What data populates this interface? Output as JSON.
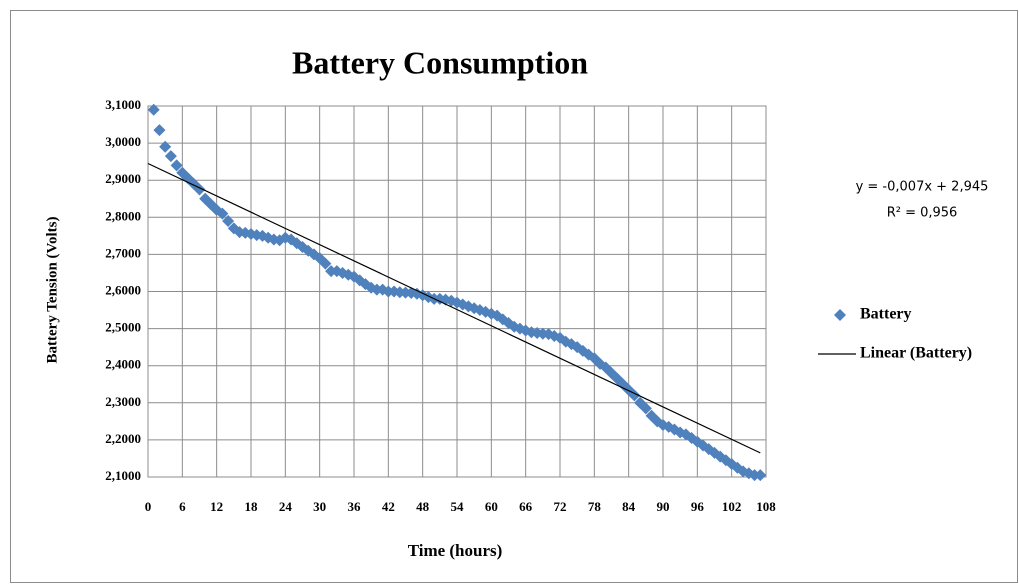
{
  "chart_data": {
    "type": "scatter",
    "title": "Battery Consumption",
    "x_label": "Time (hours)",
    "y_label": "Battery Tension (Volts)",
    "annotations": [
      "y = -0,007x + 2,945",
      "R² = 0,956"
    ],
    "xlim": [
      0,
      108
    ],
    "ylim": [
      2.1,
      3.1
    ],
    "xticks": [
      0,
      6,
      12,
      18,
      24,
      30,
      36,
      42,
      48,
      54,
      60,
      66,
      72,
      78,
      84,
      90,
      96,
      102,
      108
    ],
    "yticks": [
      {
        "value": 2.1,
        "label": "2,1000"
      },
      {
        "value": 2.2,
        "label": "2,2000"
      },
      {
        "value": 2.3,
        "label": "2,3000"
      },
      {
        "value": 2.4,
        "label": "2,4000"
      },
      {
        "value": 2.5,
        "label": "2,5000"
      },
      {
        "value": 2.6,
        "label": "2,6000"
      },
      {
        "value": 2.7,
        "label": "2,7000"
      },
      {
        "value": 2.8,
        "label": "2,8000"
      },
      {
        "value": 2.9,
        "label": "2,9000"
      },
      {
        "value": 3.0,
        "label": "3,0000"
      },
      {
        "value": 3.1,
        "label": "3,1000"
      }
    ],
    "grid": true,
    "legend": "right",
    "series": [
      {
        "name": "Battery",
        "color": "#4f81bd",
        "marker": "diamond",
        "x": [
          1,
          2,
          3,
          4,
          5,
          6,
          7,
          8,
          9,
          10,
          11,
          12,
          13,
          14,
          15,
          16,
          17,
          18,
          19,
          20,
          21,
          22,
          23,
          24,
          25,
          26,
          27,
          28,
          29,
          30,
          31,
          32,
          33,
          34,
          35,
          36,
          37,
          38,
          39,
          40,
          41,
          42,
          43,
          44,
          45,
          46,
          47,
          48,
          49,
          50,
          51,
          52,
          53,
          54,
          55,
          56,
          57,
          58,
          59,
          60,
          61,
          62,
          63,
          64,
          65,
          66,
          67,
          68,
          69,
          70,
          71,
          72,
          73,
          74,
          75,
          76,
          77,
          78,
          79,
          80,
          81,
          82,
          83,
          84,
          85,
          86,
          87,
          88,
          89,
          90,
          91,
          92,
          93,
          94,
          95,
          96,
          97,
          98,
          99,
          100,
          101,
          102,
          103,
          104,
          105,
          106,
          107
        ],
        "values": [
          3.09,
          3.035,
          2.99,
          2.965,
          2.94,
          2.92,
          2.905,
          2.89,
          2.875,
          2.85,
          2.835,
          2.82,
          2.81,
          2.79,
          2.77,
          2.76,
          2.758,
          2.755,
          2.752,
          2.75,
          2.745,
          2.74,
          2.738,
          2.745,
          2.74,
          2.73,
          2.72,
          2.71,
          2.7,
          2.69,
          2.675,
          2.655,
          2.655,
          2.65,
          2.645,
          2.64,
          2.63,
          2.62,
          2.61,
          2.605,
          2.605,
          2.6,
          2.6,
          2.598,
          2.597,
          2.596,
          2.594,
          2.59,
          2.585,
          2.58,
          2.58,
          2.578,
          2.575,
          2.57,
          2.565,
          2.56,
          2.555,
          2.55,
          2.545,
          2.54,
          2.535,
          2.525,
          2.515,
          2.505,
          2.5,
          2.495,
          2.49,
          2.488,
          2.486,
          2.485,
          2.48,
          2.475,
          2.465,
          2.458,
          2.45,
          2.44,
          2.43,
          2.42,
          2.405,
          2.395,
          2.38,
          2.365,
          2.35,
          2.335,
          2.32,
          2.3,
          2.285,
          2.265,
          2.25,
          2.24,
          2.235,
          2.228,
          2.22,
          2.215,
          2.205,
          2.195,
          2.185,
          2.175,
          2.165,
          2.155,
          2.145,
          2.135,
          2.125,
          2.115,
          2.11,
          2.105,
          2.105
        ]
      },
      {
        "name": "Linear (Battery)",
        "color": "#000000",
        "marker": "line",
        "x": [
          0,
          107
        ],
        "values": [
          2.945,
          2.165
        ]
      }
    ]
  }
}
